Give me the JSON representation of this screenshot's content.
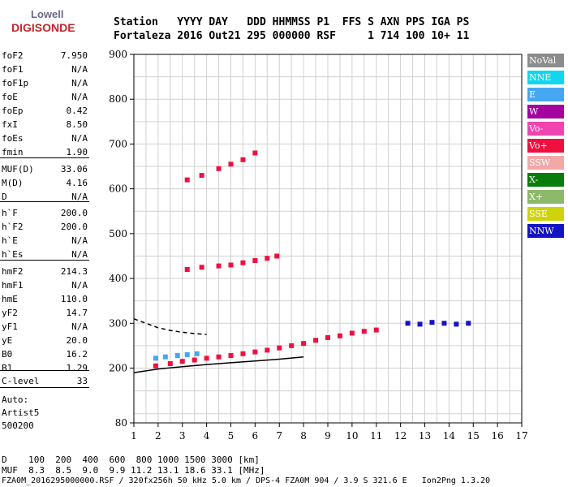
{
  "logo": {
    "brand": "Lowell",
    "product": "DIGISONDE"
  },
  "header": {
    "line1": "Station   YYYY DAY   DDD HHMMSS P1  FFS S AXN PPS IGA PS",
    "line2": "Fortaleza 2016 Out21 295 000000 RSF     1 714 100 10+ 11"
  },
  "params": [
    {
      "label": "foF2",
      "value": "7.950"
    },
    {
      "label": "foF1",
      "value": "N/A"
    },
    {
      "label": "foF1p",
      "value": "N/A"
    },
    {
      "label": "foE",
      "value": "N/A"
    },
    {
      "label": "foEp",
      "value": "0.42"
    },
    {
      "label": "fxI",
      "value": "8.50"
    },
    {
      "label": "foEs",
      "value": "N/A"
    },
    {
      "label": "fmin",
      "value": "1.90"
    },
    {
      "label": "MUF(D)",
      "value": "33.06"
    },
    {
      "label": "M(D)",
      "value": "4.16"
    },
    {
      "label": "D",
      "value": "N/A"
    },
    {
      "label": "h`F",
      "value": "200.0"
    },
    {
      "label": "h`F2",
      "value": "200.0"
    },
    {
      "label": "h`E",
      "value": "N/A"
    },
    {
      "label": "h`Es",
      "value": "N/A"
    },
    {
      "label": "hmF2",
      "value": "214.3"
    },
    {
      "label": "hmF1",
      "value": "N/A"
    },
    {
      "label": "hmE",
      "value": "110.0"
    },
    {
      "label": "yF2",
      "value": "14.7"
    },
    {
      "label": "yF1",
      "value": "N/A"
    },
    {
      "label": "yE",
      "value": "20.0"
    },
    {
      "label": "B0",
      "value": "16.2"
    },
    {
      "label": "B1",
      "value": "1.29"
    },
    {
      "label": "C-level",
      "value": "33"
    }
  ],
  "autoscaling": {
    "line1": "Auto:",
    "line2": "Artist5",
    "line3": "500200"
  },
  "footer": {
    "d_row": "D    100  200  400  600  800 1000 1500 3000 [km]",
    "muf_row": "MUF  8.3  8.5  9.0  9.9 11.2 13.1 18.6 33.1 [MHz]",
    "file_row": "FZA0M_2016295000000.RSF / 320fx256h 50 kHz 5.0 km / DPS-4 FZA0M 904 / 3.9 S 321.6 E   Ion2Png 1.3.20"
  },
  "legend": [
    {
      "label": "NoVal",
      "color": "#8c8c8c"
    },
    {
      "label": "NNE",
      "color": "#11d7ee"
    },
    {
      "label": "E",
      "color": "#45a7f2"
    },
    {
      "label": "W",
      "color": "#a5039f"
    },
    {
      "label": "Vo-",
      "color": "#f045b0"
    },
    {
      "label": "Vo+",
      "color": "#ef1040"
    },
    {
      "label": "SSW",
      "color": "#f3a8a8"
    },
    {
      "label": "X-",
      "color": "#0a7c0a"
    },
    {
      "label": "X+",
      "color": "#8cb96b"
    },
    {
      "label": "SSE",
      "color": "#cfd30c"
    },
    {
      "label": "NNW",
      "color": "#1414c4"
    }
  ],
  "chart_data": {
    "type": "scatter",
    "title": "",
    "xlabel": "",
    "ylabel": "",
    "xlim": [
      1,
      17
    ],
    "ylim": [
      80,
      900
    ],
    "x_ticks": [
      1,
      2,
      3,
      4,
      5,
      6,
      7,
      8,
      9,
      10,
      11,
      12,
      13,
      14,
      15,
      16,
      17
    ],
    "y_ticks": [
      80,
      200,
      300,
      400,
      500,
      600,
      700,
      800,
      900
    ],
    "grid": true,
    "x_grid_step": 0.5,
    "y_grid_step": 50,
    "traces": [
      {
        "name": "F2 trace O",
        "color": "#ef1040",
        "points": [
          [
            1.9,
            205
          ],
          [
            2.5,
            210
          ],
          [
            3,
            215
          ],
          [
            3.5,
            218
          ],
          [
            4,
            222
          ],
          [
            4.5,
            225
          ],
          [
            5,
            228
          ],
          [
            5.5,
            232
          ],
          [
            6,
            236
          ],
          [
            6.5,
            240
          ],
          [
            7,
            245
          ],
          [
            7.5,
            250
          ],
          [
            8,
            255
          ],
          [
            8.5,
            262
          ],
          [
            9,
            268
          ],
          [
            9.5,
            272
          ],
          [
            10,
            278
          ],
          [
            10.5,
            282
          ],
          [
            11,
            285
          ]
        ]
      },
      {
        "name": "F2 trace E",
        "color": "#45a7f2",
        "points": [
          [
            1.9,
            222
          ],
          [
            2.3,
            225
          ],
          [
            2.8,
            228
          ],
          [
            3.2,
            230
          ],
          [
            3.6,
            232
          ]
        ]
      },
      {
        "name": "2F echo",
        "color": "#ef1040",
        "points": [
          [
            3.2,
            420
          ],
          [
            3.8,
            425
          ],
          [
            4.5,
            428
          ],
          [
            5,
            430
          ],
          [
            5.5,
            435
          ],
          [
            6,
            440
          ],
          [
            6.5,
            445
          ],
          [
            6.9,
            450
          ]
        ]
      },
      {
        "name": "3F echo",
        "color": "#ef1040",
        "points": [
          [
            3.2,
            620
          ],
          [
            3.8,
            630
          ],
          [
            4.5,
            645
          ],
          [
            5,
            655
          ],
          [
            5.5,
            665
          ],
          [
            6,
            680
          ]
        ]
      },
      {
        "name": "spread F",
        "color": "#1414c4",
        "points": [
          [
            12.3,
            300
          ],
          [
            12.8,
            298
          ],
          [
            13.3,
            302
          ],
          [
            13.8,
            300
          ],
          [
            14.3,
            298
          ],
          [
            14.8,
            300
          ]
        ]
      },
      {
        "name": "profile",
        "color": "#000000",
        "points": [
          [
            1,
            190
          ],
          [
            2,
            198
          ],
          [
            3,
            203
          ],
          [
            4,
            208
          ],
          [
            5,
            212
          ],
          [
            6,
            216
          ],
          [
            7,
            220
          ],
          [
            8,
            225
          ]
        ]
      },
      {
        "name": "profile dashed",
        "color": "#000000",
        "dashed": true,
        "points": [
          [
            1,
            310
          ],
          [
            1.5,
            300
          ],
          [
            2,
            290
          ],
          [
            2.5,
            284
          ],
          [
            3,
            280
          ],
          [
            3.5,
            277
          ],
          [
            4,
            275
          ]
        ]
      }
    ]
  }
}
